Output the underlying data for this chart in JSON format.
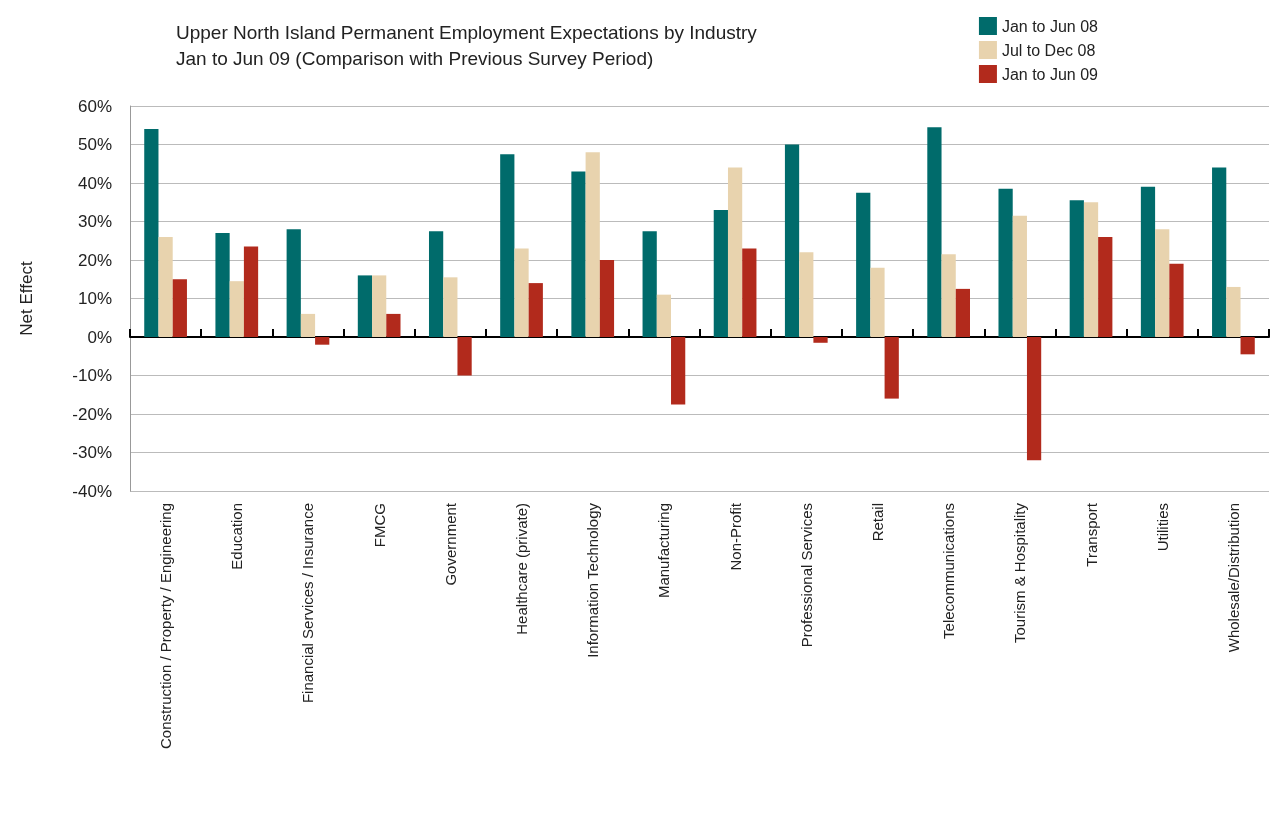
{
  "chart_data": {
    "type": "bar",
    "title": "Upper North Island Permanent Employment Expectations by Industry\nJan to Jun 09 (Comparison with Previous Survey Period)",
    "ylabel": "Net Effect",
    "categories": [
      "Construction / Property / Engineering",
      "Education",
      "Financial Services / Insurance",
      "FMCG",
      "Government",
      "Healthcare (private)",
      "Information Technology",
      "Manufacturing",
      "Non-Profit",
      "Professional Services",
      "Retail",
      "Telecommunications",
      "Tourism & Hospitality",
      "Transport",
      "Utilities",
      "Wholesale/Distribution"
    ],
    "series": [
      {
        "name": "Jan to Jun 08",
        "color": "#006b6b",
        "values": [
          54,
          27,
          28,
          16,
          27.5,
          47.5,
          43,
          27.5,
          33,
          50,
          37.5,
          54.5,
          38.5,
          35.5,
          39,
          44
        ]
      },
      {
        "name": "Jul to Dec 08",
        "color": "#e8d3ae",
        "values": [
          26,
          14.5,
          6,
          16,
          15.5,
          23,
          48,
          11,
          44,
          22,
          18,
          21.5,
          31.5,
          35,
          28,
          13
        ]
      },
      {
        "name": "Jan to Jun 09",
        "color": "#b22a1c",
        "values": [
          15,
          23.5,
          -2,
          6,
          -10,
          14,
          20,
          -17.5,
          23,
          -1.5,
          -16,
          12.5,
          -32,
          26,
          19,
          -4.5
        ]
      }
    ],
    "ylim": [
      -40,
      60
    ],
    "yticks": [
      {
        "value": -40,
        "label": "-40%"
      },
      {
        "value": -30,
        "label": "-30%"
      },
      {
        "value": -20,
        "label": "-20%"
      },
      {
        "value": -10,
        "label": "-10%"
      },
      {
        "value": 0,
        "label": "0%"
      },
      {
        "value": 10,
        "label": "10%"
      },
      {
        "value": 20,
        "label": "20%"
      },
      {
        "value": 30,
        "label": "30%"
      },
      {
        "value": 40,
        "label": "40%"
      },
      {
        "value": 50,
        "label": "50%"
      },
      {
        "value": 60,
        "label": "60%"
      }
    ],
    "grid": "y",
    "legend": "top right"
  }
}
